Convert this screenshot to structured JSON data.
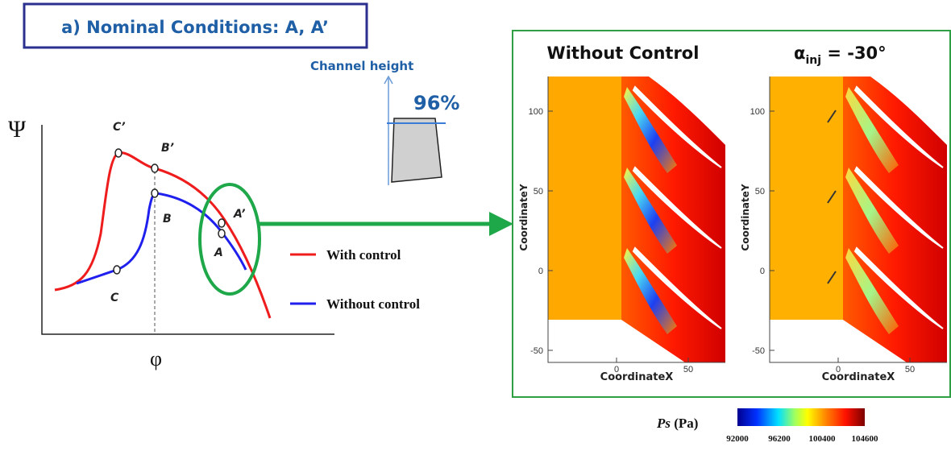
{
  "header": {
    "title": "a) Nominal Conditions: A, A’"
  },
  "curve_plot": {
    "y_label": "Ψ",
    "x_label": "φ",
    "points": {
      "c_prime": "C’",
      "b_prime": "B’",
      "a_prime": "A’",
      "c": "C",
      "b": "B",
      "a": "A"
    },
    "legend": [
      "With control",
      "Without control"
    ]
  },
  "channel": {
    "label": "Channel height",
    "value": "96%"
  },
  "panels": [
    {
      "title": "Without Control"
    },
    {
      "title_symbol": "α",
      "title_subscript": "inj",
      "title_rest": " = -30°"
    }
  ],
  "axes": {
    "y_label": "CoordinateY",
    "x_label": "CoordinateX",
    "yticks": [
      "100",
      "50",
      "0",
      "-50"
    ],
    "xticks": [
      "0",
      "50"
    ]
  },
  "colorbar": {
    "label": "Ps",
    "unit": " (Pa)",
    "ticks": [
      "92000",
      "96200",
      "100400",
      "104600"
    ]
  }
}
